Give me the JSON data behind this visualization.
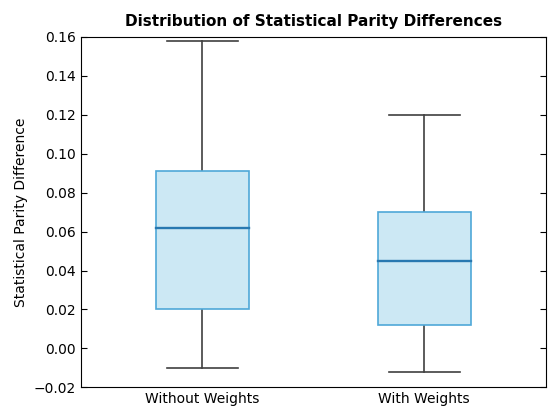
{
  "title": "Distribution of Statistical Parity Differences",
  "ylabel": "Statistical Parity Difference",
  "categories": [
    "Without Weights",
    "With Weights"
  ],
  "boxes": [
    {
      "label": "Without Weights",
      "whisker_low": -0.01,
      "q1": 0.02,
      "median": 0.062,
      "q3": 0.091,
      "whisker_high": 0.158
    },
    {
      "label": "With Weights",
      "whisker_low": -0.012,
      "q1": 0.012,
      "median": 0.045,
      "q3": 0.07,
      "whisker_high": 0.12
    }
  ],
  "ylim": [
    -0.02,
    0.16
  ],
  "yticks": [
    -0.02,
    0.0,
    0.02,
    0.04,
    0.06,
    0.08,
    0.1,
    0.12,
    0.14,
    0.16
  ],
  "box_facecolor": "#cce8f4",
  "box_edgecolor": "#4fa8d8",
  "median_color": "#2878b0",
  "whisker_color": "#404040",
  "cap_color": "#404040",
  "box_width": 0.42,
  "title_fontsize": 11,
  "label_fontsize": 10,
  "tick_fontsize": 10,
  "line_width": 1.2
}
